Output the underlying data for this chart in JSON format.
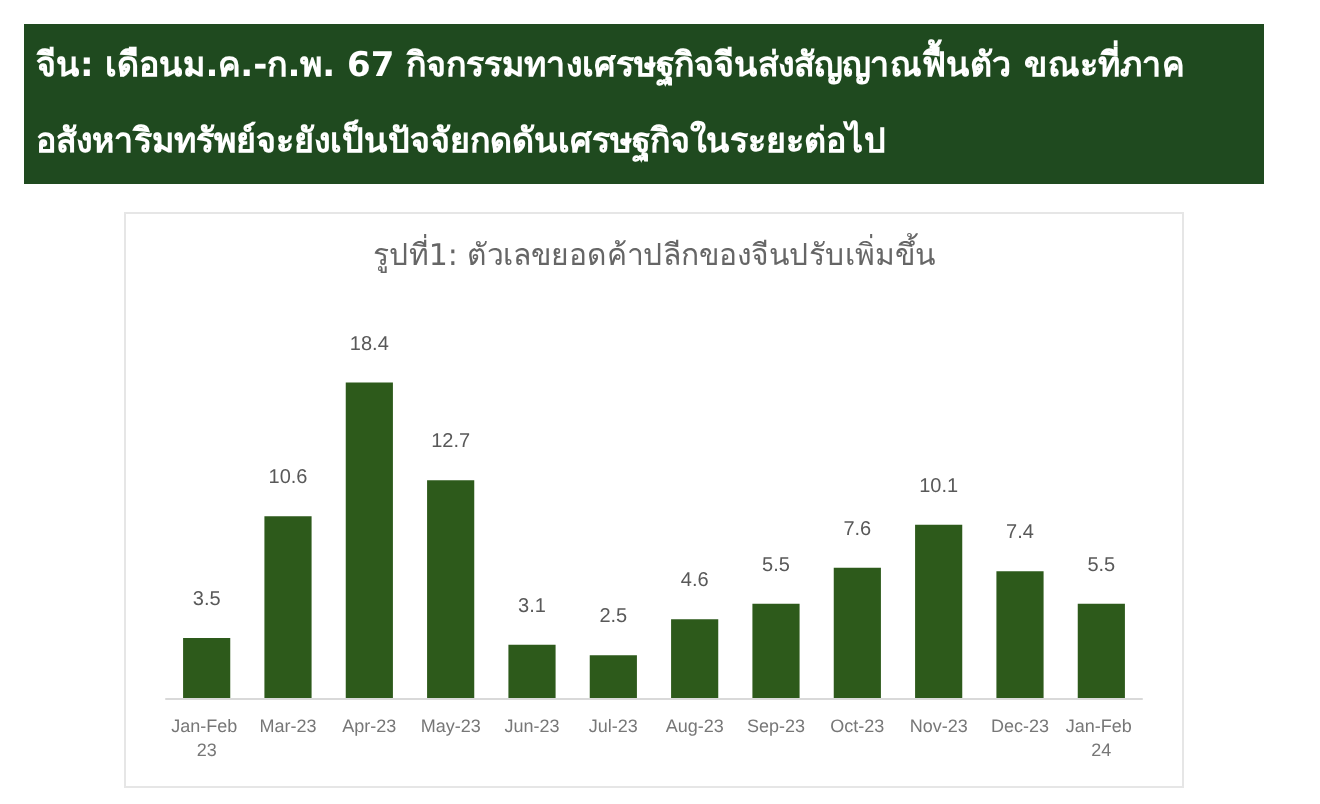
{
  "chart_data": {
    "type": "bar",
    "title": "จีน: เดือนม.ค.-ก.พ. 67 กิจกรรมทางเศรษฐกิจจีนส่งสัญญาณฟื้นตัว ขณะที่ภาคอสังหาริมทรัพย์จะยังเป็นปัจจัยกดดันเศรษฐกิจในระยะต่อไป",
    "subtitle": "รูปที่1: ตัวเลขยอดค้าปลีกของจีนปรับเพิ่มขึ้น",
    "categories": [
      "Jan-Feb 23",
      "Mar-23",
      "Apr-23",
      "May-23",
      "Jun-23",
      "Jul-23",
      "Aug-23",
      "Sep-23",
      "Oct-23",
      "Nov-23",
      "Dec-23",
      "Jan-Feb 24"
    ],
    "values": [
      3.5,
      10.6,
      18.4,
      12.7,
      3.1,
      2.5,
      4.6,
      5.5,
      7.6,
      10.1,
      7.4,
      5.5
    ],
    "color": "#2d5a1b",
    "data_labels": true,
    "grid": false
  }
}
